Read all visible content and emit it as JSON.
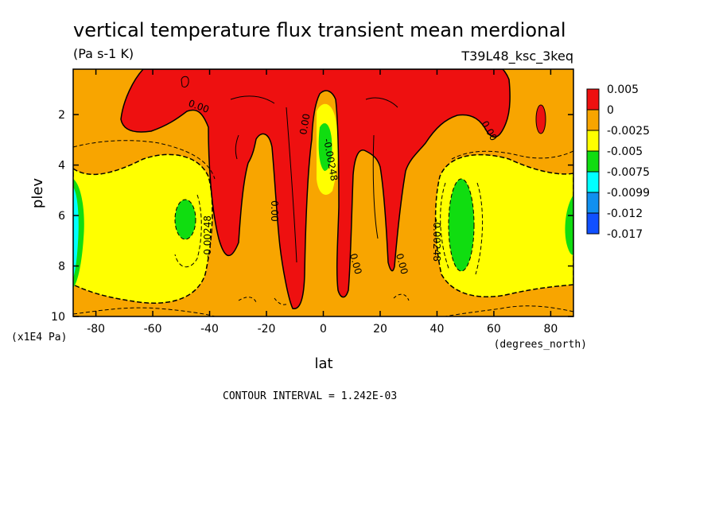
{
  "chart_data": {
    "type": "heatmap",
    "title": "vertical temperature flux transient mean merdional",
    "units": "(Pa s-1 K)",
    "dataset": "T39L48_ksc_3keq",
    "xlabel": "lat",
    "xunits": "(degrees_north)",
    "ylabel": "plev",
    "yunits": "(x1E4 Pa)",
    "xlim": [
      -88,
      88
    ],
    "ylim": [
      10,
      0.2
    ],
    "x_ticks": [
      "-80",
      "-60",
      "-40",
      "-20",
      "0",
      "20",
      "40",
      "60",
      "80"
    ],
    "y_ticks": [
      "2",
      "4",
      "6",
      "8",
      "10"
    ],
    "contour_interval": "CONTOUR INTERVAL = 1.242E-03",
    "contour_labels": [
      "0.00",
      "0.00",
      "0.00",
      "0.00",
      "0.00",
      "0.00",
      "0.00",
      "-0.00248",
      "-0.00248",
      "-0.00248"
    ],
    "legend": {
      "placement": "right",
      "levels": [
        "0.005",
        "0",
        "-0.0025",
        "-0.005",
        "-0.0075",
        "-0.0099",
        "-0.012",
        "-0.017"
      ],
      "colors": [
        "#ee1010",
        "#f8a500",
        "#ffff00",
        "#10dd10",
        "#00ffff",
        "#1090f0",
        "#1050ff"
      ]
    },
    "regions": [
      {
        "value_range": "> 0",
        "color": "#ee1010",
        "description": "upper troposphere, tropics and midlatitudes"
      },
      {
        "value_range": "0 to -0.0025",
        "color": "#f8a500",
        "description": "background"
      },
      {
        "value_range": "-0.0025 to -0.005",
        "color": "#ffff00",
        "description": "midlatitude cores"
      },
      {
        "value_range": "-0.005 to -0.0075",
        "color": "#10dd10",
        "description": "centers near 50S/50N, 6e4 Pa, equator 3e4 Pa, poles"
      },
      {
        "value_range": "-0.0075 to -0.012",
        "color": "#00ffff",
        "description": "polar edges"
      }
    ]
  }
}
